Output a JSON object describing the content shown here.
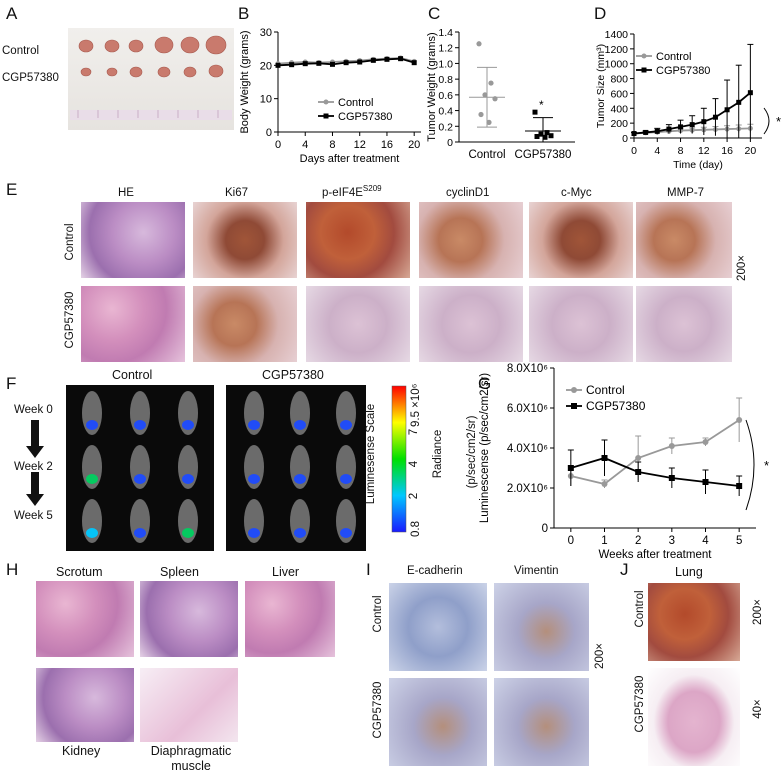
{
  "panel_letters": {
    "A": "A",
    "B": "B",
    "C": "C",
    "D": "D",
    "E": "E",
    "F": "F",
    "G": "G",
    "H": "H",
    "I": "I",
    "J": "J"
  },
  "groups": {
    "control": "Control",
    "treated": "CGP57380"
  },
  "panel_E": {
    "stains": [
      "HE",
      "Ki67",
      "p-eIF4E",
      "cyclinD1",
      "c-Myc",
      "MMP-7"
    ],
    "stain_sup": "S209",
    "magnification": "200×"
  },
  "panel_F": {
    "weeks": [
      "Week 0",
      "Week 2",
      "Week 5"
    ],
    "scale_title": "Luminesense Scale",
    "radiance_label": "Radiance",
    "radiance_unit": "(p/sec/cm2/sr)",
    "scale_ticks": [
      "0.8",
      "2",
      "4",
      "7",
      "9.5 ×10⁶"
    ]
  },
  "panel_H": {
    "tissues": [
      "Scrotum",
      "Spleen",
      "Liver",
      "Kidney",
      "Diaphragmatic muscle"
    ]
  },
  "panel_I": {
    "stains": [
      "E-cadherin",
      "Vimentin"
    ],
    "magnification": "200×"
  },
  "panel_J": {
    "title": "Lung",
    "mag_control": "200×",
    "mag_treated": "40×"
  },
  "chart_data": [
    {
      "id": "B",
      "type": "line",
      "xlabel": "Days after treatment",
      "ylabel": "Body Weight (grams)",
      "xlim": [
        0,
        21
      ],
      "ylim": [
        0,
        30
      ],
      "xticks": [
        0,
        4,
        8,
        12,
        16,
        20
      ],
      "yticks": [
        0,
        10,
        20,
        30
      ],
      "x": [
        0,
        2,
        4,
        6,
        8,
        10,
        12,
        14,
        16,
        18,
        20
      ],
      "series": [
        {
          "name": "Control",
          "values": [
            20.5,
            20.8,
            21,
            20.8,
            21,
            21.2,
            21.4,
            21.8,
            22,
            22.2,
            21.2
          ]
        },
        {
          "name": "CGP57380",
          "values": [
            20,
            20.2,
            20.5,
            20.6,
            20.3,
            20.8,
            21,
            21.5,
            21.8,
            22,
            20.8
          ]
        }
      ],
      "legend": "center-right"
    },
    {
      "id": "C",
      "type": "scatter",
      "ylabel": "Tumor Weight (grams)",
      "ylim": [
        0,
        1.4
      ],
      "yticks": [
        0,
        0.2,
        0.4,
        0.6,
        0.8,
        1.0,
        1.2,
        1.4
      ],
      "categories": [
        "Control",
        "CGP57380"
      ],
      "series": [
        {
          "name": "Control",
          "values": [
            1.25,
            0.75,
            0.6,
            0.55,
            0.35,
            0.25
          ],
          "mean": 0.57,
          "sd": 0.38
        },
        {
          "name": "CGP57380",
          "values": [
            0.38,
            0.12,
            0.1,
            0.08,
            0.07,
            0.06
          ],
          "mean": 0.14,
          "sd": 0.17
        }
      ],
      "annotation": "*"
    },
    {
      "id": "D",
      "type": "line",
      "xlabel": "Time (day)",
      "ylabel": "Tumor Size (mm³)",
      "xlim": [
        0,
        22
      ],
      "ylim": [
        0,
        1400
      ],
      "xticks": [
        0,
        4,
        8,
        12,
        16,
        20
      ],
      "yticks": [
        0,
        200,
        400,
        600,
        800,
        1000,
        1200,
        1400
      ],
      "x": [
        0,
        2,
        4,
        6,
        8,
        10,
        12,
        14,
        16,
        18,
        20
      ],
      "series": [
        {
          "name": "Control",
          "values": [
            60,
            70,
            80,
            90,
            100,
            105,
            110,
            115,
            120,
            125,
            130
          ],
          "err": [
            10,
            12,
            15,
            20,
            25,
            30,
            35,
            40,
            45,
            50,
            55
          ]
        },
        {
          "name": "CGP57380",
          "values": [
            60,
            75,
            90,
            120,
            150,
            180,
            220,
            280,
            380,
            480,
            610
          ],
          "err": [
            15,
            20,
            40,
            60,
            90,
            120,
            180,
            250,
            400,
            500,
            650
          ]
        }
      ],
      "legend": "top-left",
      "annotation": "*"
    },
    {
      "id": "G",
      "type": "line",
      "xlabel": "Weeks after treatment",
      "ylabel": "Luminescense (p/sec/cm2/sr)",
      "xlim": [
        -0.5,
        5.5
      ],
      "ylim": [
        0,
        8
      ],
      "xticks": [
        0,
        1,
        2,
        3,
        4,
        5
      ],
      "yticks": [
        0,
        2,
        4,
        6,
        8
      ],
      "ytick_labels": [
        "0",
        "2.0X10⁶",
        "4.0X10⁶",
        "6.0X10⁶",
        "8.0X10⁶"
      ],
      "x": [
        0,
        1,
        2,
        3,
        4,
        5
      ],
      "series": [
        {
          "name": "Control",
          "values": [
            2.6,
            2.2,
            3.5,
            4.1,
            4.3,
            5.4
          ],
          "err": [
            0.5,
            0.2,
            1.1,
            0.4,
            0.2,
            1.1
          ]
        },
        {
          "name": "CGP57380",
          "values": [
            3.0,
            3.5,
            2.8,
            2.5,
            2.3,
            2.1
          ],
          "err": [
            0.9,
            0.9,
            0.5,
            0.5,
            0.6,
            0.5
          ]
        }
      ],
      "legend": "top-left",
      "annotation": "*"
    }
  ]
}
